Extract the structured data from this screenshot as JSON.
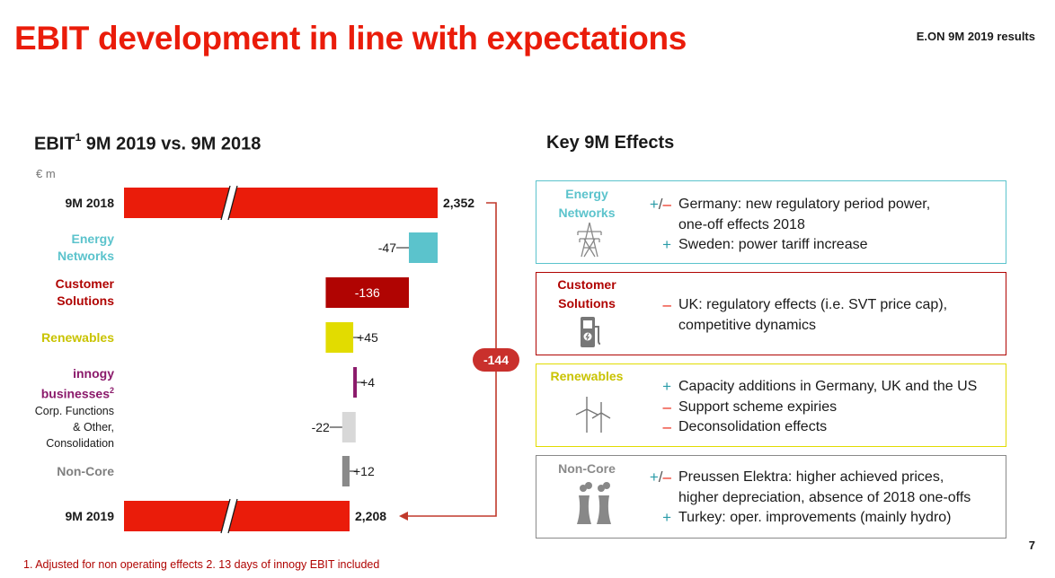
{
  "title": "EBIT development in line with expectations",
  "report_tag": "E.ON 9M 2019 results",
  "chart_heading": {
    "main": "EBIT",
    "sup": "1",
    "rest": " 9M 2019 vs. 9M 2018"
  },
  "unit": "€ m",
  "effects_heading": "Key 9M Effects",
  "colors": {
    "red": "#ea1c0a",
    "energy_networks": "#5bc3cc",
    "customer_solutions": "#b00402",
    "renewables": "#e2dc00",
    "innogy": "#8b1a6b",
    "corp_functions": "#d8d8d8",
    "non_core": "#8a8a8a"
  },
  "chart_data": {
    "type": "bar",
    "subtype": "waterfall",
    "title": "EBIT 9M 2019 vs. 9M 2018",
    "unit": "€ m",
    "categories": [
      "9M 2018",
      "Energy Networks",
      "Customer Solutions",
      "Renewables",
      "innogy businesses",
      "Corp. Functions & Other, Consolidation",
      "Non-Core",
      "9M 2019"
    ],
    "category_labels": [
      {
        "lines": [
          "9M 2018"
        ],
        "color": "#1a1a1a",
        "style": "bold"
      },
      {
        "lines": [
          "Energy",
          "Networks"
        ],
        "color": "#5bc3cc",
        "style": "bold"
      },
      {
        "lines": [
          "Customer",
          "Solutions"
        ],
        "color": "#b00402",
        "style": "bold"
      },
      {
        "lines": [
          "Renewables"
        ],
        "color": "#c9c300",
        "style": "bold"
      },
      {
        "lines": [
          "innogy",
          "businesses"
        ],
        "sup": "2",
        "color": "#8b1a6b",
        "style": "bold"
      },
      {
        "lines": [
          "Corp. Functions",
          "& Other,",
          "Consolidation"
        ],
        "color": "#1a1a1a",
        "style": "normal"
      },
      {
        "lines": [
          "Non-Core"
        ],
        "color": "#808080",
        "style": "bold"
      },
      {
        "lines": [
          "9M 2019"
        ],
        "color": "#1a1a1a",
        "style": "bold"
      }
    ],
    "values": [
      2352,
      -47,
      -136,
      45,
      4,
      -22,
      12,
      2208
    ],
    "value_labels": [
      "2,352",
      "-47",
      "-136",
      "+45",
      "+4",
      "-22",
      "+12",
      "2,208"
    ],
    "bar_kinds": [
      "total",
      "delta",
      "delta",
      "delta",
      "delta",
      "delta",
      "delta",
      "total"
    ],
    "axis_break": true,
    "difference": {
      "value": -144,
      "label": "-144"
    }
  },
  "effects": [
    {
      "key": "energy-networks",
      "label_lines": [
        "Energy",
        "Networks"
      ],
      "color": "#5bc3cc",
      "icon": "power-pylon-icon",
      "items": [
        {
          "signs": [
            "+",
            "/",
            "–"
          ],
          "lines": [
            "Germany: new regulatory period power,",
            "one-off effects 2018"
          ]
        },
        {
          "signs": [
            "+"
          ],
          "lines": [
            "Sweden: power tariff increase"
          ]
        }
      ]
    },
    {
      "key": "customer-solutions",
      "label_lines": [
        "Customer",
        "Solutions"
      ],
      "color": "#b00402",
      "icon": "charging-station-icon",
      "items": [
        {
          "signs": [
            "–"
          ],
          "lines": [
            "UK: regulatory effects (i.e. SVT price cap),",
            "competitive dynamics"
          ]
        }
      ]
    },
    {
      "key": "renewables",
      "label_lines": [
        "Renewables"
      ],
      "color": "#e2dc00",
      "icon": "wind-turbine-icon",
      "items": [
        {
          "signs": [
            "+"
          ],
          "lines": [
            "Capacity additions in Germany, UK and the US"
          ]
        },
        {
          "signs": [
            "–"
          ],
          "lines": [
            "Support scheme expiries"
          ]
        },
        {
          "signs": [
            "–"
          ],
          "lines": [
            "Deconsolidation effects"
          ]
        }
      ]
    },
    {
      "key": "non-core",
      "label_lines": [
        "Non-Core"
      ],
      "color": "#8a8a8a",
      "icon": "cooling-tower-icon",
      "items": [
        {
          "signs": [
            "+",
            "/",
            "–"
          ],
          "lines": [
            "Preussen Elektra: higher achieved prices,",
            "higher depreciation, absence of 2018 one-offs"
          ]
        },
        {
          "signs": [
            "+"
          ],
          "lines": [
            "Turkey: oper. improvements (mainly hydro)"
          ]
        }
      ]
    }
  ],
  "footnote": "1. Adjusted for non operating effects   2. 13 days of innogy EBIT included",
  "page_number": "7"
}
